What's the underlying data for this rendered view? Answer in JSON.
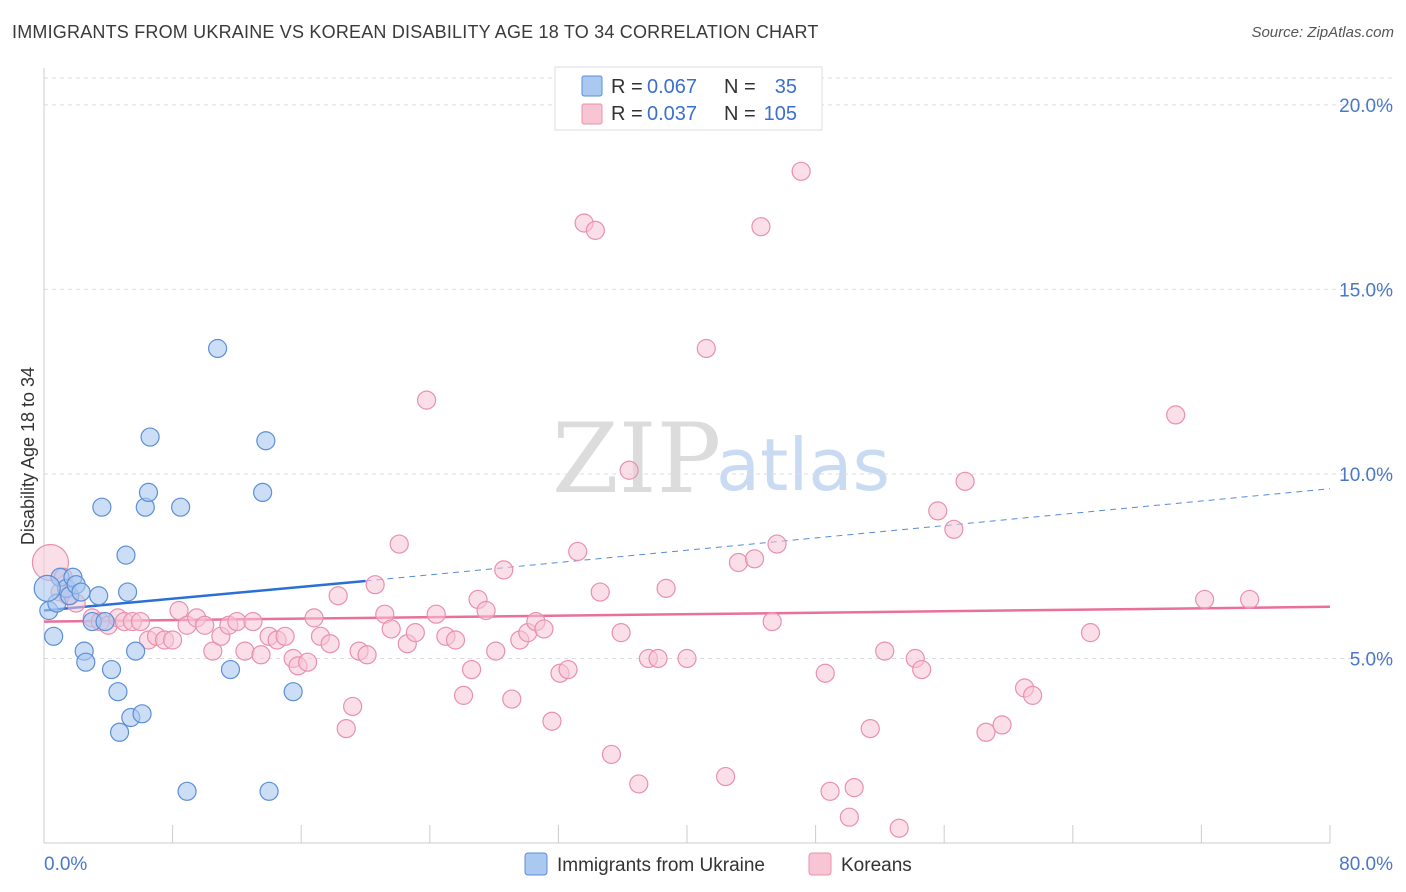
{
  "title": "IMMIGRANTS FROM UKRAINE VS KOREAN DISABILITY AGE 18 TO 34 CORRELATION CHART",
  "source": "Source: ZipAtlas.com",
  "watermark": {
    "zip": "ZIP",
    "atlas": "atlas"
  },
  "colors": {
    "ukraine_fill": "#aac8f0",
    "ukraine_stroke": "#5b8fd6",
    "ukraine_line": "#2a6fd6",
    "korean_fill": "#f8c5d5",
    "korean_stroke": "#e890ad",
    "korean_line": "#e8709a",
    "tick_label": "#4a78c8",
    "grid": "#dddddd"
  },
  "legend": {
    "rows": [
      {
        "r_label": "R =",
        "r_value": "0.067",
        "n_label": "N =",
        "n_value": "35"
      },
      {
        "r_label": "R =",
        "r_value": "0.037",
        "n_label": "N =",
        "n_value": "105"
      }
    ]
  },
  "chart_data": {
    "type": "scatter",
    "title": "IMMIGRANTS FROM UKRAINE VS KOREAN DISABILITY AGE 18 TO 34 CORRELATION CHART",
    "xlabel": "",
    "ylabel": "Disability Age 18 to 34",
    "xlim": [
      0,
      80
    ],
    "ylim": [
      0,
      21
    ],
    "x_tick_labels": [
      "0.0%",
      "80.0%"
    ],
    "y_ticks": [
      5,
      10,
      15,
      20
    ],
    "y_tick_labels": [
      "5.0%",
      "10.0%",
      "15.0%",
      "20.0%"
    ],
    "grid": true,
    "legend_position": "bottom",
    "series": [
      {
        "name": "Immigrants from Ukraine",
        "r": 0.067,
        "n": 35,
        "trend": {
          "x": [
            0,
            20
          ],
          "y": [
            6.3,
            7.1
          ],
          "dashed_extension_to": [
            80,
            9.6
          ]
        },
        "points": [
          [
            0.3,
            6.3
          ],
          [
            0.6,
            5.6
          ],
          [
            0.8,
            6.5
          ],
          [
            1.0,
            7.2
          ],
          [
            1.4,
            6.9
          ],
          [
            1.6,
            6.7
          ],
          [
            1.8,
            7.2
          ],
          [
            2.0,
            7.0
          ],
          [
            2.3,
            6.8
          ],
          [
            2.5,
            5.2
          ],
          [
            2.6,
            4.9
          ],
          [
            3.0,
            6.0
          ],
          [
            3.4,
            6.7
          ],
          [
            3.6,
            9.1
          ],
          [
            3.8,
            6.0
          ],
          [
            4.2,
            4.7
          ],
          [
            4.6,
            4.1
          ],
          [
            4.7,
            3.0
          ],
          [
            5.1,
            7.8
          ],
          [
            5.2,
            6.8
          ],
          [
            5.4,
            3.4
          ],
          [
            5.7,
            5.2
          ],
          [
            6.1,
            3.5
          ],
          [
            6.3,
            9.1
          ],
          [
            6.5,
            9.5
          ],
          [
            6.6,
            11.0
          ],
          [
            8.5,
            9.1
          ],
          [
            8.9,
            1.4
          ],
          [
            10.8,
            13.4
          ],
          [
            11.6,
            4.7
          ],
          [
            13.6,
            9.5
          ],
          [
            13.8,
            10.9
          ],
          [
            14.0,
            1.4
          ],
          [
            15.5,
            4.1
          ],
          [
            0.2,
            6.9
          ]
        ]
      },
      {
        "name": "Koreans",
        "r": 0.037,
        "n": 105,
        "trend": {
          "x": [
            0,
            80
          ],
          "y": [
            6.0,
            6.4
          ]
        },
        "points": [
          [
            0.4,
            7.6
          ],
          [
            1.0,
            6.8
          ],
          [
            1.5,
            6.7
          ],
          [
            2.0,
            6.5
          ],
          [
            3.0,
            6.1
          ],
          [
            3.5,
            6.0
          ],
          [
            4.0,
            5.9
          ],
          [
            4.6,
            6.1
          ],
          [
            5.0,
            6.0
          ],
          [
            5.5,
            6.0
          ],
          [
            6.0,
            6.0
          ],
          [
            6.5,
            5.5
          ],
          [
            7.0,
            5.6
          ],
          [
            7.5,
            5.5
          ],
          [
            8.0,
            5.5
          ],
          [
            8.4,
            6.3
          ],
          [
            8.9,
            5.9
          ],
          [
            9.5,
            6.1
          ],
          [
            10.0,
            5.9
          ],
          [
            10.5,
            5.2
          ],
          [
            11.0,
            5.6
          ],
          [
            11.5,
            5.9
          ],
          [
            12.0,
            6.0
          ],
          [
            12.5,
            5.2
          ],
          [
            13.0,
            6.0
          ],
          [
            13.5,
            5.1
          ],
          [
            14.0,
            5.6
          ],
          [
            14.5,
            5.5
          ],
          [
            15.0,
            5.6
          ],
          [
            15.5,
            5.0
          ],
          [
            15.8,
            4.8
          ],
          [
            16.4,
            4.9
          ],
          [
            16.8,
            6.1
          ],
          [
            17.2,
            5.6
          ],
          [
            17.8,
            5.4
          ],
          [
            18.3,
            6.7
          ],
          [
            18.8,
            3.1
          ],
          [
            19.2,
            3.7
          ],
          [
            19.6,
            5.2
          ],
          [
            20.1,
            5.1
          ],
          [
            20.6,
            7.0
          ],
          [
            21.2,
            6.2
          ],
          [
            21.6,
            5.8
          ],
          [
            22.1,
            8.1
          ],
          [
            22.6,
            5.4
          ],
          [
            23.1,
            5.7
          ],
          [
            23.8,
            12.0
          ],
          [
            24.4,
            6.2
          ],
          [
            25.0,
            5.6
          ],
          [
            25.6,
            5.5
          ],
          [
            26.1,
            4.0
          ],
          [
            26.6,
            4.7
          ],
          [
            27.0,
            6.6
          ],
          [
            27.5,
            6.3
          ],
          [
            28.1,
            5.2
          ],
          [
            28.6,
            7.4
          ],
          [
            29.1,
            3.9
          ],
          [
            29.6,
            5.5
          ],
          [
            30.1,
            5.7
          ],
          [
            30.6,
            6.0
          ],
          [
            31.1,
            5.8
          ],
          [
            31.6,
            3.3
          ],
          [
            32.1,
            4.6
          ],
          [
            32.6,
            4.7
          ],
          [
            33.2,
            7.9
          ],
          [
            33.6,
            16.8
          ],
          [
            34.3,
            16.6
          ],
          [
            34.6,
            6.8
          ],
          [
            35.3,
            2.4
          ],
          [
            35.9,
            5.7
          ],
          [
            36.4,
            10.1
          ],
          [
            37.0,
            1.6
          ],
          [
            37.6,
            5.0
          ],
          [
            38.2,
            5.0
          ],
          [
            38.7,
            6.9
          ],
          [
            40.0,
            5.0
          ],
          [
            41.2,
            13.4
          ],
          [
            42.4,
            1.8
          ],
          [
            43.2,
            7.6
          ],
          [
            44.2,
            7.7
          ],
          [
            44.6,
            16.7
          ],
          [
            45.3,
            6.0
          ],
          [
            45.6,
            8.1
          ],
          [
            47.1,
            18.2
          ],
          [
            48.6,
            4.6
          ],
          [
            48.9,
            1.4
          ],
          [
            50.1,
            0.7
          ],
          [
            50.4,
            1.5
          ],
          [
            51.4,
            3.1
          ],
          [
            52.3,
            5.2
          ],
          [
            53.2,
            0.4
          ],
          [
            54.2,
            5.0
          ],
          [
            54.6,
            4.7
          ],
          [
            55.6,
            9.0
          ],
          [
            56.6,
            8.5
          ],
          [
            57.3,
            9.8
          ],
          [
            58.6,
            3.0
          ],
          [
            59.6,
            3.2
          ],
          [
            61.0,
            4.2
          ],
          [
            61.5,
            4.0
          ],
          [
            65.1,
            5.7
          ],
          [
            70.4,
            11.6
          ],
          [
            72.2,
            6.6
          ],
          [
            75.0,
            6.6
          ],
          [
            1.2,
            7.2
          ]
        ]
      }
    ]
  },
  "bottom_legend": [
    {
      "label": "Immigrants from Ukraine"
    },
    {
      "label": "Koreans"
    }
  ]
}
